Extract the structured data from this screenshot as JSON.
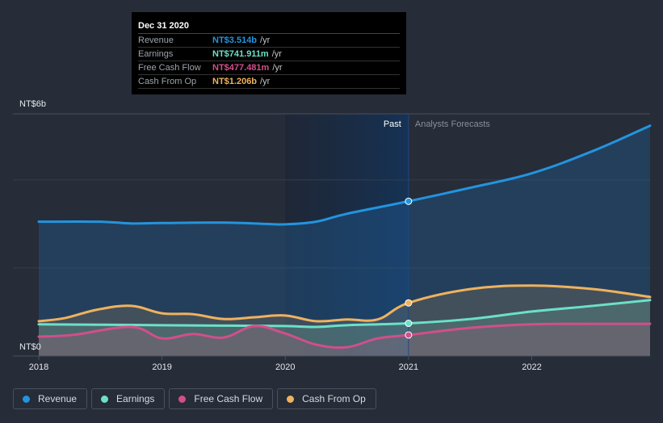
{
  "tooltip": {
    "date": "Dec 31 2020",
    "rows": [
      {
        "label": "Revenue",
        "value": "NT$3.514b",
        "unit": "/yr",
        "color": "#2394df"
      },
      {
        "label": "Earnings",
        "value": "NT$741.911m",
        "unit": "/yr",
        "color": "#6ce0c8"
      },
      {
        "label": "Free Cash Flow",
        "value": "NT$477.481m",
        "unit": "/yr",
        "color": "#d14f8a"
      },
      {
        "label": "Cash From Op",
        "value": "NT$1.206b",
        "unit": "/yr",
        "color": "#efb25e"
      }
    ]
  },
  "labels": {
    "past": "Past",
    "forecast": "Analysts Forecasts"
  },
  "legend": [
    {
      "label": "Revenue",
      "color": "#2394df"
    },
    {
      "label": "Earnings",
      "color": "#6ce0c8"
    },
    {
      "label": "Free Cash Flow",
      "color": "#d14f8a"
    },
    {
      "label": "Cash From Op",
      "color": "#efb25e"
    }
  ],
  "chart_data": {
    "type": "area",
    "title": "",
    "xlabel": "",
    "ylabel": "",
    "unit": "NT$ billions per year",
    "xlim": [
      2018.0,
      2022.96
    ],
    "ylim": [
      0,
      5.5
    ],
    "y_tick_labels": [
      {
        "value": 5.5,
        "label": "NT$6b"
      },
      {
        "value": 0,
        "label": "NT$0"
      }
    ],
    "y_gridlines": [
      2,
      4,
      5.5
    ],
    "x_ticks": [
      2018,
      2019,
      2020,
      2021,
      2022
    ],
    "x_tick_labels": [
      "2018",
      "2019",
      "2020",
      "2021",
      "2022"
    ],
    "past_region": [
      2020.0,
      2021.0
    ],
    "divider": 2021.0,
    "highlight_date": 2021.0,
    "series": [
      {
        "name": "Revenue",
        "color": "#2394df",
        "x": [
          2018.0,
          2018.5,
          2018.75,
          2019.0,
          2019.5,
          2019.85,
          2020.0,
          2020.25,
          2020.5,
          2021.0,
          2021.5,
          2022.0,
          2022.5,
          2022.96
        ],
        "values": [
          3.05,
          3.05,
          3.01,
          3.02,
          3.03,
          3.0,
          2.99,
          3.05,
          3.23,
          3.514,
          3.82,
          4.15,
          4.66,
          5.23
        ]
      },
      {
        "name": "Earnings",
        "color": "#6ce0c8",
        "x": [
          2018.0,
          2018.5,
          2019.0,
          2019.5,
          2020.0,
          2020.25,
          2020.5,
          2021.0,
          2021.5,
          2022.0,
          2022.5,
          2022.96
        ],
        "values": [
          0.72,
          0.71,
          0.7,
          0.69,
          0.68,
          0.66,
          0.7,
          0.742,
          0.84,
          1.01,
          1.14,
          1.27
        ]
      },
      {
        "name": "Free Cash Flow",
        "color": "#d14f8a",
        "x": [
          2018.0,
          2018.28,
          2018.75,
          2019.0,
          2019.25,
          2019.5,
          2019.75,
          2020.0,
          2020.25,
          2020.5,
          2020.75,
          2021.0,
          2021.5,
          2022.0,
          2022.5,
          2022.96
        ],
        "values": [
          0.44,
          0.48,
          0.66,
          0.4,
          0.5,
          0.42,
          0.68,
          0.51,
          0.26,
          0.2,
          0.4,
          0.477,
          0.64,
          0.72,
          0.73,
          0.73
        ]
      },
      {
        "name": "Cash From Op",
        "color": "#efb25e",
        "x": [
          2018.0,
          2018.21,
          2018.47,
          2018.75,
          2019.0,
          2019.25,
          2019.5,
          2019.75,
          2020.0,
          2020.25,
          2020.5,
          2020.75,
          2021.0,
          2021.5,
          2022.0,
          2022.5,
          2022.96
        ],
        "values": [
          0.79,
          0.86,
          1.05,
          1.14,
          0.97,
          0.95,
          0.84,
          0.88,
          0.92,
          0.79,
          0.83,
          0.83,
          1.206,
          1.52,
          1.6,
          1.52,
          1.34
        ]
      }
    ]
  }
}
